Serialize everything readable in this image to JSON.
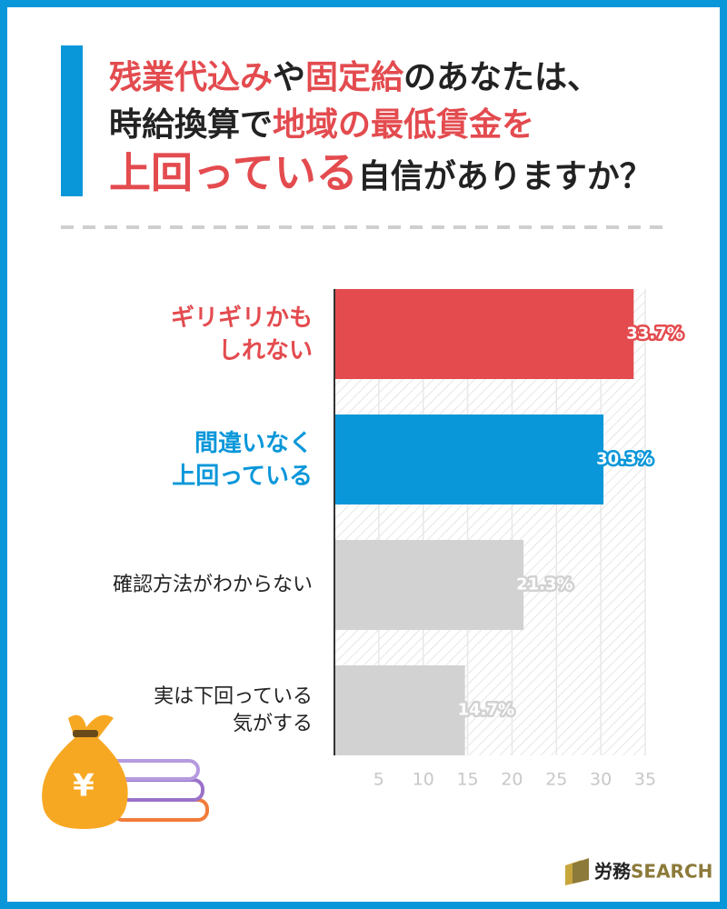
{
  "title_lines": [
    [
      {
        "text": "残業代込み",
        "color": "#e34b4f"
      },
      {
        "text": "や"
      },
      {
        "text": "固定給",
        "color": "#e34b4f"
      },
      {
        "text": "のあなたは、"
      }
    ],
    [
      {
        "text": "時給換算で"
      },
      {
        "text": "地域の最低賃金を",
        "color": "#e34b4f"
      }
    ],
    [
      {
        "text": "上回っている",
        "color": "#e34b4f",
        "large": true
      },
      {
        "text": "自信がありますか？"
      }
    ]
  ],
  "chart_data": {
    "type": "hbar",
    "categories": [
      "ギリギリかも\nしれない",
      "間違いなく\n上回っている",
      "確認方法がわからない",
      "実は下回っている\n気がする"
    ],
    "values": [
      33.7,
      30.3,
      21.3,
      14.7
    ],
    "value_labels": [
      "33.7%",
      "30.3%",
      "21.3%",
      "14.7%"
    ],
    "colors": [
      "#e34b4f",
      "#0a97d9",
      "#d2d2d2",
      "#d2d2d2"
    ],
    "label_colors": [
      "#e34b4f",
      "#0a97d9",
      "#222222",
      "#222222"
    ],
    "xlim": [
      0,
      35
    ],
    "xticks": [
      5,
      10,
      15,
      20,
      25,
      30,
      35
    ],
    "grid": true
  },
  "icon_text": "¥",
  "brand": {
    "ja": "労務",
    "en": "SEARCH"
  }
}
